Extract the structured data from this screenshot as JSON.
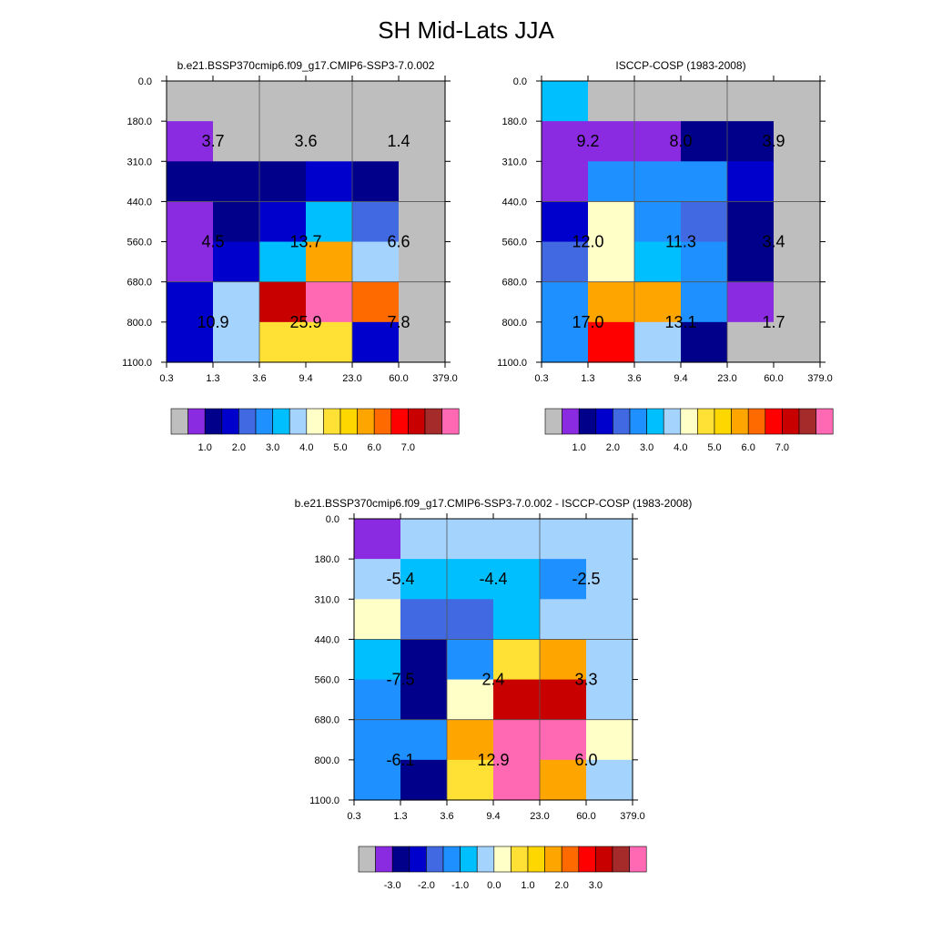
{
  "figure": {
    "title": "SH Mid-Lats JJA"
  },
  "colors": {
    "missing": "#bebebe",
    "abs_palette": [
      "#8a2be2",
      "#00008b",
      "#0000cd",
      "#4169e1",
      "#1e90ff",
      "#00bfff",
      "#a4d3fe",
      "#ffffc8",
      "#ffe135",
      "#ffd700",
      "#ffa500",
      "#ff6a00",
      "#ff0000",
      "#c80000",
      "#a52a2a",
      "#ff69b4"
    ],
    "diff_palette": [
      "#8a2be2",
      "#00008b",
      "#0000cd",
      "#4169e1",
      "#1e90ff",
      "#00bfff",
      "#a4d3fe",
      "#ffffc8",
      "#ffe135",
      "#ffd700",
      "#ffa500",
      "#ff6a00",
      "#ff0000",
      "#c80000",
      "#a52a2a",
      "#ff69b4"
    ]
  },
  "chart_data": [
    {
      "type": "heatmap",
      "title": "b.e21.BSSP370cmip6.f09_g17.CMIP6-SSP3-7.0.002",
      "x_tick_labels": [
        "0.3",
        "1.3",
        "3.6",
        "9.4",
        "23.0",
        "60.0",
        "379.0"
      ],
      "y_tick_labels": [
        "0.0",
        "180.0",
        "310.0",
        "440.0",
        "560.0",
        "680.0",
        "800.0",
        "1100.0"
      ],
      "cells": [
        [
          "missing",
          "missing",
          "missing",
          "missing",
          "missing",
          "missing"
        ],
        [
          "#8a2be2",
          "missing",
          "missing",
          "missing",
          "missing",
          "missing"
        ],
        [
          "#00008b",
          "#00008b",
          "#00008b",
          "#0000cd",
          "#00008b",
          "missing"
        ],
        [
          "#8a2be2",
          "#00008b",
          "#0000cd",
          "#00bfff",
          "#4169e1",
          "missing"
        ],
        [
          "#8a2be2",
          "#0000cd",
          "#00bfff",
          "#ffa500",
          "#a4d3fe",
          "missing"
        ],
        [
          "#0000cd",
          "#a4d3fe",
          "#c80000",
          "#ff69b4",
          "#ff6a00",
          "missing"
        ],
        [
          "#0000cd",
          "#a4d3fe",
          "#ffe135",
          "#ffe135",
          "#0000cd",
          "missing"
        ]
      ],
      "annotations": [
        {
          "text": "3.7",
          "x_col": 1,
          "y_row": 1.5
        },
        {
          "text": "3.6",
          "x_col": 3,
          "y_row": 1.5
        },
        {
          "text": "1.4",
          "x_col": 5,
          "y_row": 1.5
        },
        {
          "text": "4.5",
          "x_col": 1,
          "y_row": 4
        },
        {
          "text": "13.7",
          "x_col": 3,
          "y_row": 4
        },
        {
          "text": "6.6",
          "x_col": 5,
          "y_row": 4
        },
        {
          "text": "10.9",
          "x_col": 1,
          "y_row": 6
        },
        {
          "text": "25.9",
          "x_col": 3,
          "y_row": 6
        },
        {
          "text": "7.8",
          "x_col": 5,
          "y_row": 6
        }
      ],
      "colorbar": {
        "tick_labels": [
          "1.0",
          "2.0",
          "3.0",
          "4.0",
          "5.0",
          "6.0",
          "7.0"
        ]
      }
    },
    {
      "type": "heatmap",
      "title": "ISCCP-COSP (1983-2008)",
      "x_tick_labels": [
        "0.3",
        "1.3",
        "3.6",
        "9.4",
        "23.0",
        "60.0",
        "379.0"
      ],
      "y_tick_labels": [
        "0.0",
        "180.0",
        "310.0",
        "440.0",
        "560.0",
        "680.0",
        "800.0",
        "1100.0"
      ],
      "cells": [
        [
          "#00bfff",
          "missing",
          "missing",
          "missing",
          "missing",
          "missing"
        ],
        [
          "#8a2be2",
          "#8a2be2",
          "#8a2be2",
          "#00008b",
          "#00008b",
          "missing"
        ],
        [
          "#8a2be2",
          "#1e90ff",
          "#1e90ff",
          "#1e90ff",
          "#0000cd",
          "missing"
        ],
        [
          "#0000cd",
          "#ffffc8",
          "#1e90ff",
          "#4169e1",
          "#00008b",
          "missing"
        ],
        [
          "#4169e1",
          "#ffffc8",
          "#00bfff",
          "#1e90ff",
          "#00008b",
          "missing"
        ],
        [
          "#1e90ff",
          "#ffa500",
          "#ffa500",
          "#1e90ff",
          "#8a2be2",
          "missing"
        ],
        [
          "#1e90ff",
          "#ff0000",
          "#a4d3fe",
          "#00008b",
          "missing",
          "missing"
        ]
      ],
      "annotations": [
        {
          "text": "9.2",
          "x_col": 1,
          "y_row": 1.5
        },
        {
          "text": "8.0",
          "x_col": 3,
          "y_row": 1.5
        },
        {
          "text": "3.9",
          "x_col": 5,
          "y_row": 1.5
        },
        {
          "text": "12.0",
          "x_col": 1,
          "y_row": 4
        },
        {
          "text": "11.3",
          "x_col": 3,
          "y_row": 4
        },
        {
          "text": "3.4",
          "x_col": 5,
          "y_row": 4
        },
        {
          "text": "17.0",
          "x_col": 1,
          "y_row": 6
        },
        {
          "text": "13.1",
          "x_col": 3,
          "y_row": 6
        },
        {
          "text": "1.7",
          "x_col": 5,
          "y_row": 6
        }
      ],
      "colorbar": {
        "tick_labels": [
          "1.0",
          "2.0",
          "3.0",
          "4.0",
          "5.0",
          "6.0",
          "7.0"
        ]
      }
    },
    {
      "type": "heatmap",
      "title": "b.e21.BSSP370cmip6.f09_g17.CMIP6-SSP3-7.0.002 - ISCCP-COSP (1983-2008)",
      "x_tick_labels": [
        "0.3",
        "1.3",
        "3.6",
        "9.4",
        "23.0",
        "60.0",
        "379.0"
      ],
      "y_tick_labels": [
        "0.0",
        "180.0",
        "310.0",
        "440.0",
        "560.0",
        "680.0",
        "800.0",
        "1100.0"
      ],
      "cells": [
        [
          "#8a2be2",
          "#a4d3fe",
          "#a4d3fe",
          "#a4d3fe",
          "#a4d3fe",
          "#a4d3fe"
        ],
        [
          "#a4d3fe",
          "#00bfff",
          "#00bfff",
          "#00bfff",
          "#1e90ff",
          "#a4d3fe"
        ],
        [
          "#ffffc8",
          "#4169e1",
          "#4169e1",
          "#00bfff",
          "#a4d3fe",
          "#a4d3fe"
        ],
        [
          "#00bfff",
          "#00008b",
          "#1e90ff",
          "#ffe135",
          "#ffa500",
          "#a4d3fe"
        ],
        [
          "#1e90ff",
          "#00008b",
          "#ffffc8",
          "#c80000",
          "#c80000",
          "#a4d3fe"
        ],
        [
          "#1e90ff",
          "#1e90ff",
          "#ffa500",
          "#ff69b4",
          "#ff69b4",
          "#ffffc8"
        ],
        [
          "#1e90ff",
          "#00008b",
          "#ffe135",
          "#ff69b4",
          "#ffa500",
          "#a4d3fe"
        ]
      ],
      "annotations": [
        {
          "text": "-5.4",
          "x_col": 1,
          "y_row": 1.5
        },
        {
          "text": "-4.4",
          "x_col": 3,
          "y_row": 1.5
        },
        {
          "text": "-2.5",
          "x_col": 5,
          "y_row": 1.5
        },
        {
          "text": "-7.5",
          "x_col": 1,
          "y_row": 4
        },
        {
          "text": "2.4",
          "x_col": 3,
          "y_row": 4
        },
        {
          "text": "3.3",
          "x_col": 5,
          "y_row": 4
        },
        {
          "text": "-6.1",
          "x_col": 1,
          "y_row": 6
        },
        {
          "text": "12.9",
          "x_col": 3,
          "y_row": 6
        },
        {
          "text": "6.0",
          "x_col": 5,
          "y_row": 6
        }
      ],
      "colorbar": {
        "tick_labels": [
          "-3.0",
          "-2.0",
          "-1.0",
          "0.0",
          "1.0",
          "2.0",
          "3.0"
        ]
      }
    }
  ]
}
